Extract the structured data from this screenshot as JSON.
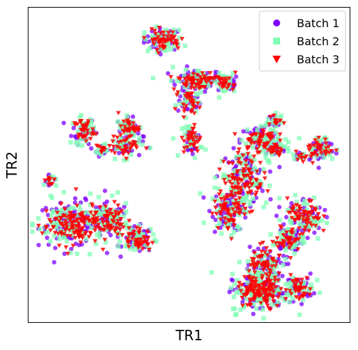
{
  "chart_data": {
    "type": "scatter",
    "xlabel": "TR1",
    "ylabel": "TR2",
    "ticks": "none",
    "legend_position": "top-right",
    "series": [
      {
        "name": "Batch 1",
        "marker": "circle",
        "color": "#7f00ff"
      },
      {
        "name": "Batch 2",
        "marker": "square",
        "color": "#80ffb4"
      },
      {
        "name": "Batch 3",
        "marker": "triangle-down",
        "color": "#ff0000"
      }
    ],
    "clusters": [
      {
        "x": 0.42,
        "y": 0.9,
        "rx": 0.05,
        "ry": 0.03,
        "n": 45
      },
      {
        "x": 0.52,
        "y": 0.77,
        "rx": 0.07,
        "ry": 0.03,
        "n": 55
      },
      {
        "x": 0.5,
        "y": 0.7,
        "rx": 0.03,
        "ry": 0.03,
        "n": 25
      },
      {
        "x": 0.62,
        "y": 0.76,
        "rx": 0.03,
        "ry": 0.025,
        "n": 20
      },
      {
        "x": 0.51,
        "y": 0.58,
        "rx": 0.025,
        "ry": 0.045,
        "n": 28
      },
      {
        "x": 0.17,
        "y": 0.61,
        "rx": 0.03,
        "ry": 0.035,
        "n": 32
      },
      {
        "x": 0.31,
        "y": 0.62,
        "rx": 0.03,
        "ry": 0.025,
        "n": 28
      },
      {
        "x": 0.3,
        "y": 0.56,
        "rx": 0.045,
        "ry": 0.03,
        "n": 32
      },
      {
        "x": 0.225,
        "y": 0.55,
        "rx": 0.018,
        "ry": 0.018,
        "n": 10
      },
      {
        "x": 0.065,
        "y": 0.45,
        "rx": 0.015,
        "ry": 0.018,
        "n": 8
      },
      {
        "x": 0.13,
        "y": 0.31,
        "rx": 0.085,
        "ry": 0.06,
        "n": 110
      },
      {
        "x": 0.25,
        "y": 0.32,
        "rx": 0.05,
        "ry": 0.05,
        "n": 60
      },
      {
        "x": 0.34,
        "y": 0.26,
        "rx": 0.04,
        "ry": 0.035,
        "n": 40
      },
      {
        "x": 0.63,
        "y": 0.36,
        "rx": 0.05,
        "ry": 0.06,
        "n": 60
      },
      {
        "x": 0.67,
        "y": 0.46,
        "rx": 0.06,
        "ry": 0.07,
        "n": 80
      },
      {
        "x": 0.72,
        "y": 0.58,
        "rx": 0.05,
        "ry": 0.04,
        "n": 45
      },
      {
        "x": 0.77,
        "y": 0.55,
        "rx": 0.025,
        "ry": 0.025,
        "n": 18
      },
      {
        "x": 0.77,
        "y": 0.64,
        "rx": 0.02,
        "ry": 0.02,
        "n": 12
      },
      {
        "x": 0.91,
        "y": 0.55,
        "rx": 0.04,
        "ry": 0.035,
        "n": 30
      },
      {
        "x": 0.85,
        "y": 0.53,
        "rx": 0.02,
        "ry": 0.012,
        "n": 8
      },
      {
        "x": 0.86,
        "y": 0.33,
        "rx": 0.05,
        "ry": 0.055,
        "n": 55
      },
      {
        "x": 0.81,
        "y": 0.26,
        "rx": 0.04,
        "ry": 0.04,
        "n": 35
      },
      {
        "x": 0.74,
        "y": 0.17,
        "rx": 0.05,
        "ry": 0.06,
        "n": 60
      },
      {
        "x": 0.72,
        "y": 0.09,
        "rx": 0.07,
        "ry": 0.05,
        "n": 100
      },
      {
        "x": 0.84,
        "y": 0.11,
        "rx": 0.04,
        "ry": 0.035,
        "n": 35
      }
    ]
  }
}
